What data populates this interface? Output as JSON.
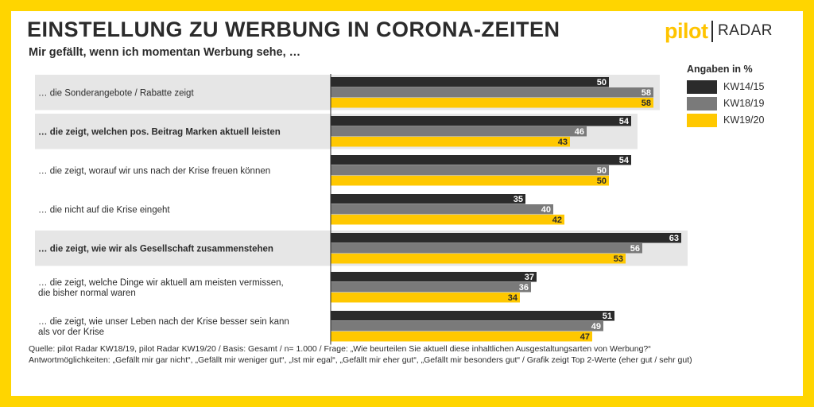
{
  "title": "EINSTELLUNG ZU WERBUNG IN CORONA-ZEITEN",
  "subtitle": "Mir gefällt, wenn ich momentan Werbung sehe, …",
  "logo": {
    "brand": "pilot",
    "product": "RADAR"
  },
  "legend": {
    "title": "Angaben in %"
  },
  "source": {
    "line1": "Quelle: pilot Radar KW18/19, pilot Radar KW19/20 / Basis: Gesamt / n= 1.000  / Frage: „Wie beurteilen Sie aktuell diese inhaltlichen Ausgestaltungsarten von Werbung?“",
    "line2": "Antwortmöglichkeiten: „Gefällt mir gar nicht“, „Gefällt mir weniger gut“, „Ist mir egal“, „Gefällt mir eher gut“, „Gefällt mir besonders gut“ / Grafik zeigt Top 2-Werte (eher gut / sehr gut)"
  },
  "colors": {
    "frame": "#ffd500",
    "highlight": "#e6e6e6"
  },
  "chart_data": {
    "type": "bar",
    "orientation": "horizontal",
    "categories": [
      "… die Sonderangebote / Rabatte zeigt",
      "… die zeigt, welchen pos. Beitrag Marken aktuell leisten",
      "… die zeigt, worauf wir uns nach der Krise freuen können",
      "… die nicht auf die Krise eingeht",
      "… die zeigt, wie wir als Gesellschaft zusammenstehen",
      "… die zeigt, welche Dinge wir aktuell am meisten vermissen, die bisher normal waren",
      "… die zeigt, wie unser Leben nach der Krise besser sein kann als vor der Krise"
    ],
    "category_lines": [
      [
        "… die Sonderangebote / Rabatte zeigt"
      ],
      [
        "… die zeigt, welchen pos. Beitrag Marken aktuell leisten"
      ],
      [
        "… die zeigt, worauf wir uns nach der Krise freuen können"
      ],
      [
        "… die nicht auf die Krise eingeht"
      ],
      [
        "… die zeigt, wie wir als Gesellschaft zusammenstehen"
      ],
      [
        "… die zeigt, welche Dinge wir aktuell am meisten vermissen,",
        "die bisher normal waren"
      ],
      [
        "… die zeigt, wie unser Leben nach der Krise besser sein kann",
        "als vor der Krise"
      ]
    ],
    "highlighted_categories": [
      0,
      1,
      4
    ],
    "bold_categories": [
      1,
      4
    ],
    "series": [
      {
        "name": "KW14/15",
        "color": "#2b2b2b",
        "values": [
          50,
          54,
          54,
          35,
          63,
          37,
          51
        ]
      },
      {
        "name": "KW18/19",
        "color": "#7a7a7a",
        "values": [
          58,
          46,
          50,
          40,
          56,
          36,
          49
        ]
      },
      {
        "name": "KW19/20",
        "color": "#ffc800",
        "values": [
          58,
          43,
          50,
          42,
          53,
          34,
          47
        ]
      }
    ],
    "xlim": [
      0,
      100
    ],
    "data_labels": true,
    "legend_position": "top-right",
    "grid": false
  }
}
